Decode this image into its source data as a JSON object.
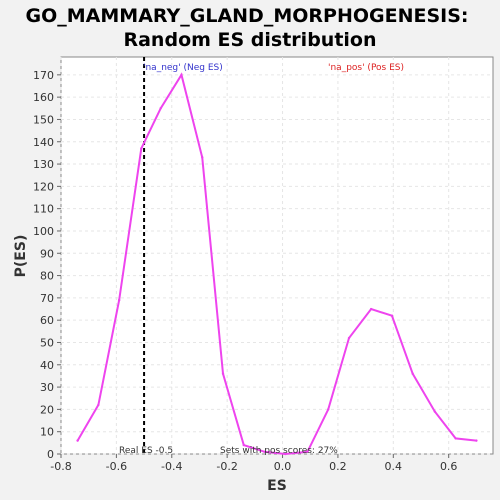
{
  "chart_data": {
    "type": "line",
    "title_line1": "GO_MAMMARY_GLAND_MORPHOGENESIS:",
    "title_line2": "Random ES distribution",
    "xlabel": "ES",
    "ylabel": "P(ES)",
    "xlim": [
      -0.8,
      0.76
    ],
    "ylim": [
      0,
      178
    ],
    "xticks": [
      -0.8,
      -0.6,
      -0.4,
      -0.2,
      0.0,
      0.2,
      0.4,
      0.6
    ],
    "xtick_labels": [
      "-0.8",
      "-0.6",
      "-0.4",
      "-0.2",
      "0.0",
      "0.2",
      "0.4",
      "0.6"
    ],
    "yticks": [
      0,
      10,
      20,
      30,
      40,
      50,
      60,
      70,
      80,
      90,
      100,
      110,
      120,
      130,
      140,
      150,
      160,
      170
    ],
    "grid": true,
    "series": [
      {
        "color": "#ee44ee",
        "x": [
          -0.74,
          -0.665,
          -0.59,
          -0.51,
          -0.44,
          -0.365,
          -0.29,
          -0.215,
          -0.14,
          -0.065,
          0.01,
          0.09,
          0.165,
          0.24,
          0.32,
          0.395,
          0.47,
          0.55,
          0.625,
          0.7
        ],
        "y": [
          6,
          22,
          69,
          137,
          155,
          170,
          133,
          36,
          4,
          1,
          0,
          1,
          20,
          52,
          65,
          62,
          36,
          19,
          7,
          6
        ]
      }
    ],
    "real_es": -0.5,
    "annotations": {
      "neg_label": "'na_neg' (Neg ES)",
      "pos_label": "'na_pos' (Pos ES)",
      "real_es_label": "Real ES -0.5",
      "pos_scores_label": "Sets with pos scores: 27%"
    },
    "colors": {
      "neg": "#3333cc",
      "pos": "#dd2222",
      "line": "#ee44ee"
    }
  }
}
